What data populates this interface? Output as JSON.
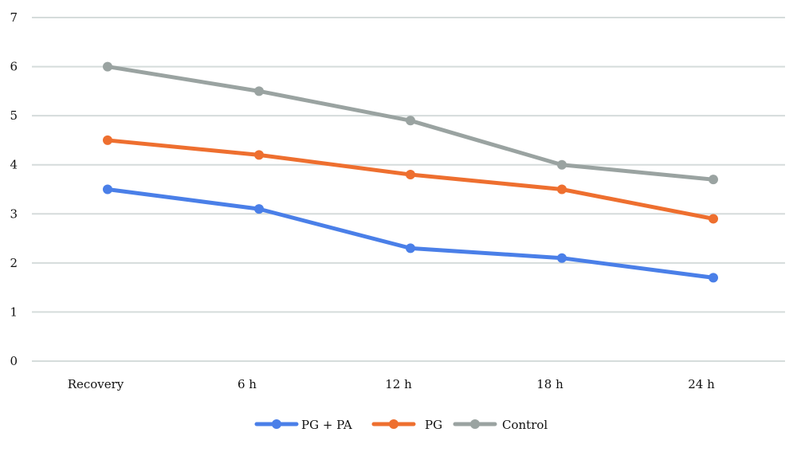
{
  "chart_data": {
    "type": "line",
    "title": "",
    "xlabel": "",
    "ylabel": "",
    "categories": [
      "Recovery",
      "6 h",
      "12 h",
      "18 h",
      "24 h"
    ],
    "ylim": [
      0,
      7
    ],
    "yticks": [
      "0",
      "1",
      "2",
      "3",
      "4",
      "5",
      "6",
      "7"
    ],
    "grid": true,
    "legend_position": "bottom",
    "series": [
      {
        "name": "PG + PA",
        "color": "#4a7fe8",
        "values": [
          3.5,
          3.1,
          2.3,
          2.1,
          1.7
        ]
      },
      {
        "name": "PG",
        "color": "#ee6f2f",
        "values": [
          4.5,
          4.2,
          3.8,
          3.5,
          2.9
        ]
      },
      {
        "name": "Control",
        "color": "#9aa3a1",
        "values": [
          6.0,
          5.5,
          4.9,
          4.0,
          3.7
        ]
      }
    ]
  }
}
